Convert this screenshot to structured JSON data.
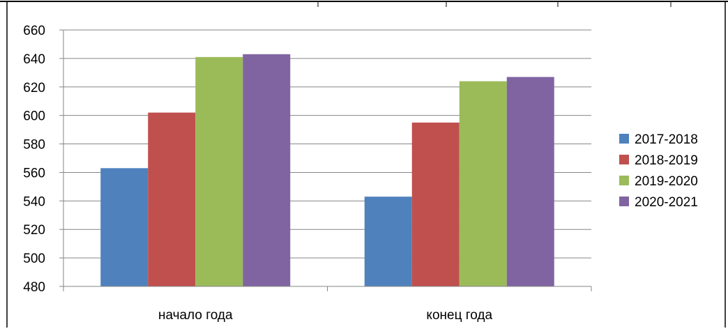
{
  "chart_data": {
    "type": "bar",
    "title": "",
    "xlabel": "",
    "ylabel": "",
    "categories": [
      "начало года",
      "конец года"
    ],
    "series": [
      {
        "name": "2017-2018",
        "values": [
          563,
          543
        ],
        "color": "#4f81bd"
      },
      {
        "name": "2018-2019",
        "values": [
          602,
          595
        ],
        "color": "#c0504d"
      },
      {
        "name": "2019-2020",
        "values": [
          641,
          624
        ],
        "color": "#9bbb59"
      },
      {
        "name": "2020-2021",
        "values": [
          643,
          627
        ],
        "color": "#8064a2"
      }
    ],
    "ylim": [
      480,
      660
    ],
    "yticks": [
      "480",
      "500",
      "520",
      "540",
      "560",
      "580",
      "600",
      "620",
      "640",
      "660"
    ],
    "grid": true,
    "legend_position": "right"
  }
}
